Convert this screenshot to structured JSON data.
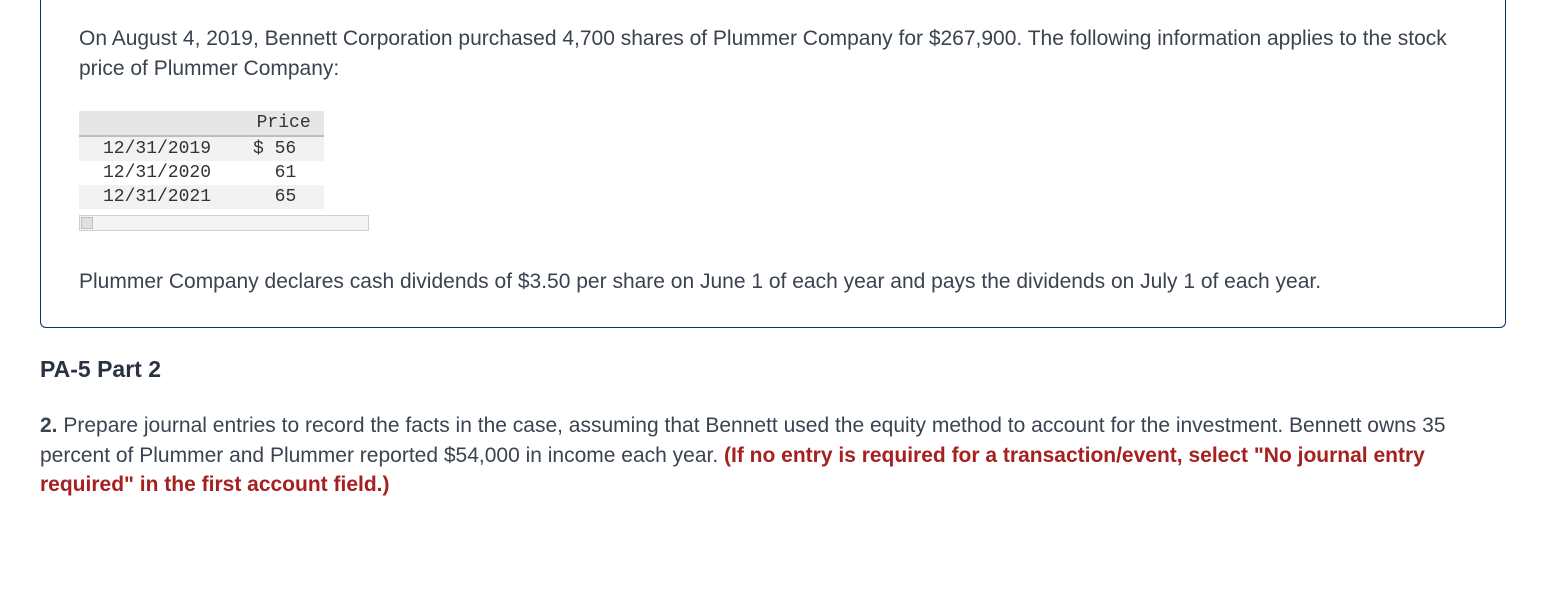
{
  "problem": {
    "intro": "On August 4, 2019, Bennett Corporation purchased 4,700 shares of Plummer Company for $267,900. The following information applies to the stock price of Plummer Company:",
    "price_header": "Price",
    "rows": [
      {
        "date": "12/31/2019",
        "price": "$ 56"
      },
      {
        "date": "12/31/2020",
        "price": "61"
      },
      {
        "date": "12/31/2021",
        "price": "65"
      }
    ],
    "dividend_note": "Plummer Company declares cash dividends of $3.50 per share on June 1 of each year and pays the dividends on July 1 of each year."
  },
  "section": {
    "heading": "PA-5 Part 2"
  },
  "question": {
    "number": "2.",
    "body": " Prepare journal entries to record the facts in the case, assuming that Bennett used the equity method to account for the investment. Bennett owns 35 percent of Plummer and Plummer reported $54,000 in income each year. ",
    "emphasis": "(If no entry is required for a transaction/event, select \"No journal entry required\" in the first account field.)"
  },
  "colors": {
    "box_border": "#0a2f6b",
    "body_text": "#3a434f",
    "emphasis_text": "#a5201e",
    "table_header_bg": "#e6e6e6",
    "table_stripe_bg": "#f2f2f2"
  }
}
